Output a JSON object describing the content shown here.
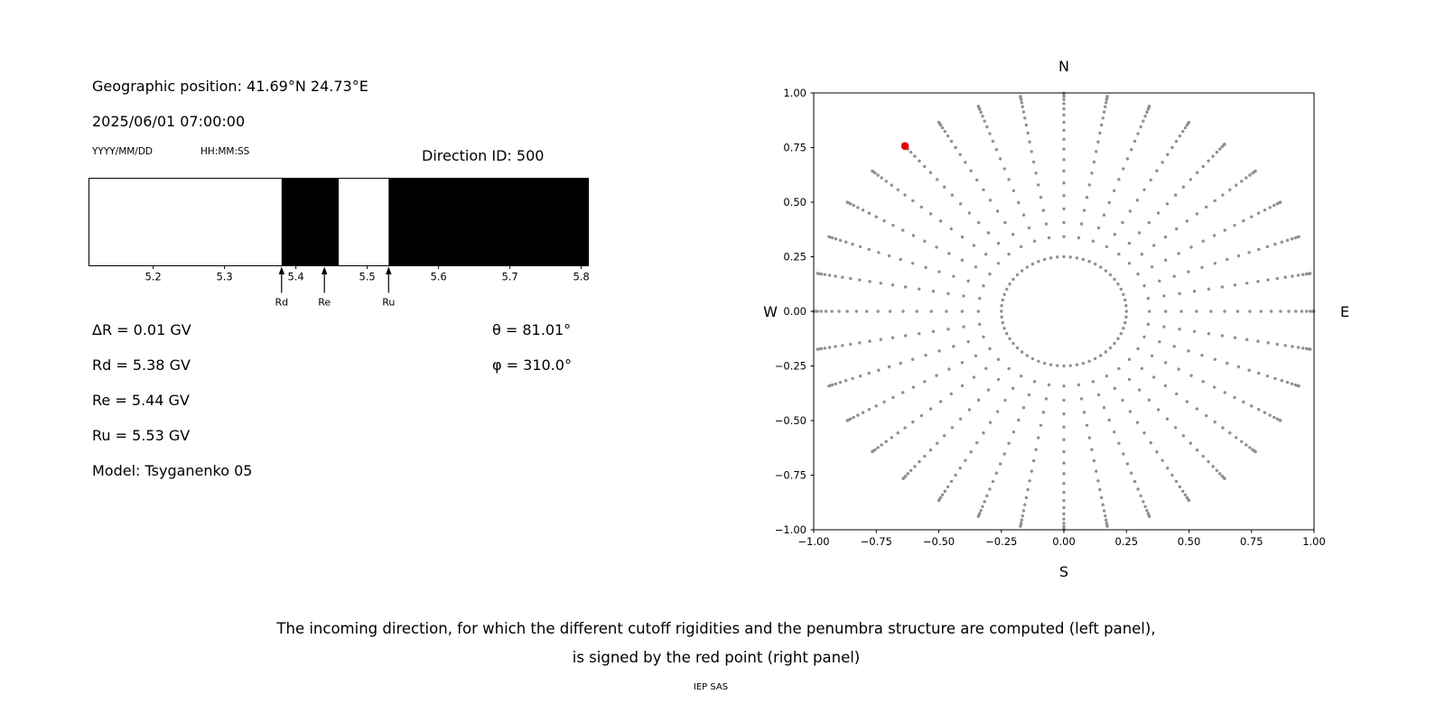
{
  "left_panel": {
    "geo_position": "Geographic position: 41.69°N 24.73°E",
    "datetime": "2025/06/01 07:00:00",
    "date_format": "YYYY/MM/DD",
    "time_format": "HH:MM:SS",
    "direction_id": "Direction ID: 500",
    "values": {
      "delta_r": "ΔR = 0.01 GV",
      "theta": "θ = 81.01°",
      "rd": "Rd = 5.38 GV",
      "phi": "φ = 310.0°",
      "re": "Re = 5.44 GV",
      "ru": "Ru = 5.53 GV",
      "model": "Model: Tsyganenko 05"
    }
  },
  "caption": {
    "line1": "The incoming direction, for which the different cutoff rigidities and the penumbra structure are computed (left panel),",
    "line2": "is signed by the red point (right panel)"
  },
  "footer": "IEP SAS",
  "chart_data": [
    {
      "type": "bar",
      "name": "penumbra-structure",
      "xlim": [
        5.11,
        5.81
      ],
      "xticks": [
        5.2,
        5.3,
        5.4,
        5.5,
        5.6,
        5.7,
        5.8
      ],
      "bands": [
        {
          "from": 5.11,
          "to": 5.38,
          "color": "#ffffff",
          "state": "allowed"
        },
        {
          "from": 5.38,
          "to": 5.46,
          "color": "#000000",
          "state": "forbidden"
        },
        {
          "from": 5.46,
          "to": 5.53,
          "color": "#ffffff",
          "state": "allowed"
        },
        {
          "from": 5.53,
          "to": 5.81,
          "color": "#000000",
          "state": "forbidden"
        }
      ],
      "markers": [
        {
          "label": "Rd",
          "value": 5.38
        },
        {
          "label": "Re",
          "value": 5.44
        },
        {
          "label": "Ru",
          "value": 5.53
        }
      ]
    },
    {
      "type": "scatter",
      "name": "incoming-direction-sky-map",
      "xlim": [
        -1.0,
        1.0
      ],
      "ylim": [
        -1.0,
        1.0
      ],
      "xticks": [
        -1.0,
        -0.75,
        -0.5,
        -0.25,
        0.0,
        0.25,
        0.5,
        0.75,
        1.0
      ],
      "yticks": [
        1.0,
        0.75,
        0.5,
        0.25,
        0.0,
        -0.25,
        -0.5,
        -0.75,
        -1.0
      ],
      "compass": {
        "top": "N",
        "bottom": "S",
        "left": "W",
        "right": "E"
      },
      "grid": {
        "radius_mapping": "sin(zenith)",
        "azimuth_step_deg": 10,
        "zenith_deg": [
          20,
          24,
          28,
          32,
          36,
          40,
          44,
          48,
          52,
          56,
          60,
          64,
          68,
          72,
          76,
          80,
          84,
          88
        ],
        "inner_ring": {
          "radius": 0.25,
          "n_points": 60
        }
      },
      "red_point": {
        "theta_deg": 81.01,
        "phi_deg": 310.0,
        "x": -0.635,
        "y": 0.757
      },
      "dot_color": "#909090",
      "red_color": "#e50000"
    }
  ]
}
